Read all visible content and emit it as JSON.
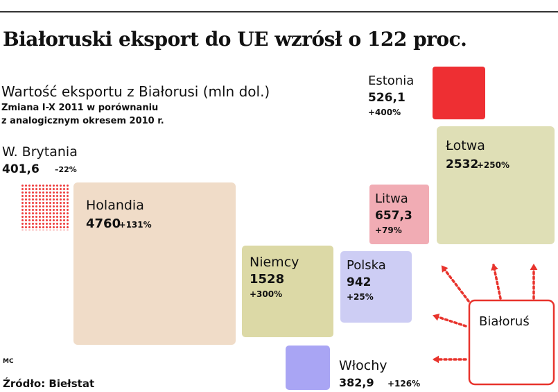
{
  "header": {
    "title": "Białoruski eksport do UE wzrósł o 122 proc.",
    "subtitle": "Wartość eksportu z Białorusi (mln dol.)",
    "note_line1": "Zmiana  I-X 2011 w porównaniu",
    "note_line2": "z analogicznym okresem 2010 r."
  },
  "footer": {
    "author": "MC",
    "source": "Źródło: Biełstat"
  },
  "colors": {
    "Holandia": "#f0dcc8",
    "Niemcy": "#dcd9a6",
    "Polska": "#cdcdf4",
    "Litwa": "#f1acb4",
    "Estonia": "#ee2f33",
    "Łotwa": "#dfdfb6",
    "Włochy": "#a9a5f4",
    "W. Brytania": "#ee3c3c",
    "arrow": "#e8332c"
  },
  "chart_data": {
    "type": "treemap",
    "title": "Białoruski eksport do UE wzrósł o 122 proc.",
    "subtitle": "Wartość eksportu z Białorusi (mln dol.)",
    "origin": "Białoruś",
    "series": [
      {
        "country": "Holandia",
        "value": 4760,
        "value_label": "4760",
        "change_label": "+131%",
        "change": 131
      },
      {
        "country": "Łotwa",
        "value": 2532,
        "value_label": "2532",
        "change_label": "+250%",
        "change": 250
      },
      {
        "country": "Niemcy",
        "value": 1528,
        "value_label": "1528",
        "change_label": "+300%",
        "change": 300
      },
      {
        "country": "Polska",
        "value": 942,
        "value_label": "942",
        "change_label": "+25%",
        "change": 25
      },
      {
        "country": "Litwa",
        "value": 657.3,
        "value_label": "657,3",
        "change_label": "+79%",
        "change": 79
      },
      {
        "country": "Estonia",
        "value": 526.1,
        "value_label": "526,1",
        "change_label": "+400%",
        "change": 400
      },
      {
        "country": "W. Brytania",
        "value": 401.6,
        "value_label": "401,6",
        "change_label": "–22%",
        "change": -22
      },
      {
        "country": "Włochy",
        "value": 382.9,
        "value_label": "382,9",
        "change_label": "+126%",
        "change": 126
      }
    ]
  }
}
